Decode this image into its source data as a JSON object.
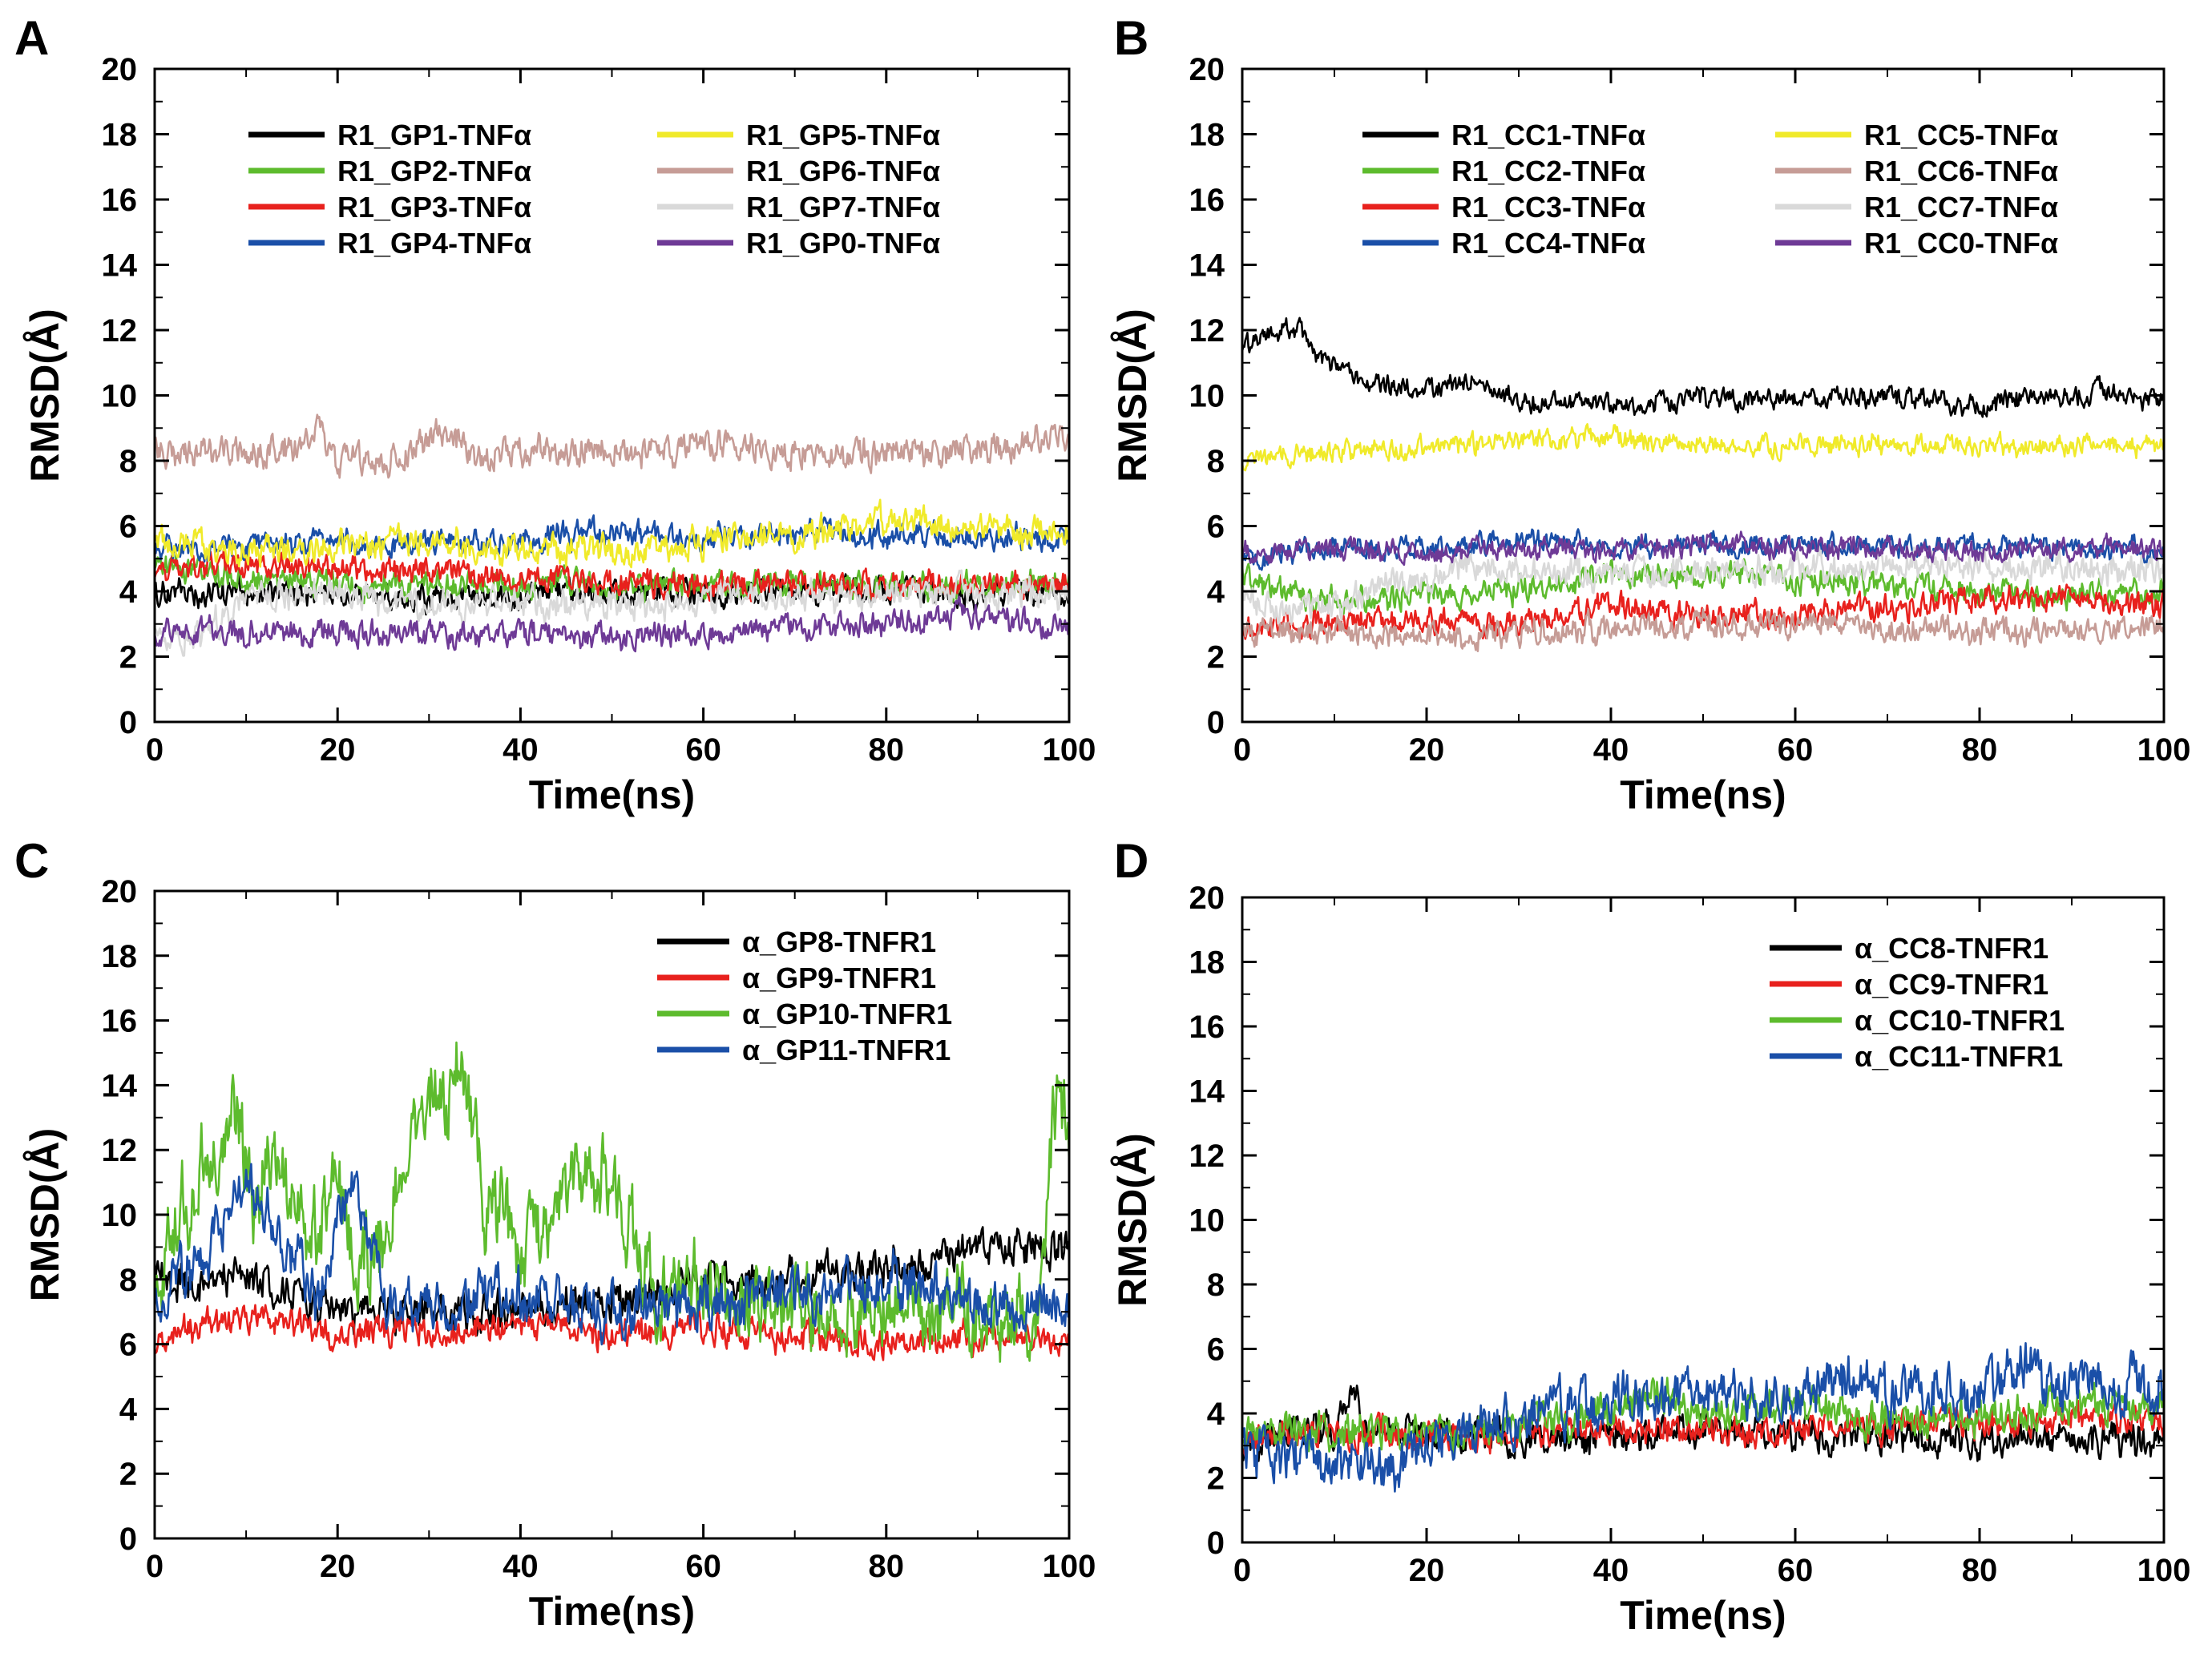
{
  "figure": {
    "background": "#ffffff"
  },
  "chart_data": [
    {
      "panel": "A",
      "type": "line",
      "title": "",
      "xlabel": "Time(ns)",
      "ylabel": "RMSD(Å)",
      "xlim": [
        0,
        100
      ],
      "ylim": [
        0,
        20
      ],
      "xticks": [
        0,
        20,
        40,
        60,
        80,
        100
      ],
      "yticks": [
        0,
        2,
        4,
        6,
        8,
        10,
        12,
        14,
        16,
        18,
        20
      ],
      "legend_columns": 2,
      "legend_position": "top-center",
      "series": [
        {
          "name": "R1_GP1-TNFα",
          "color": "#000000",
          "noise": 0.3,
          "x": [
            0,
            10,
            20,
            30,
            40,
            50,
            60,
            70,
            80,
            90,
            100
          ],
          "values": [
            3.8,
            4.0,
            3.9,
            3.8,
            3.9,
            4.0,
            4.0,
            4.0,
            4.0,
            3.9,
            4.0
          ]
        },
        {
          "name": "R1_GP2-TNFα",
          "color": "#5dbb2d",
          "noise": 0.3,
          "x": [
            0,
            10,
            20,
            30,
            40,
            50,
            60,
            70,
            80,
            90,
            100
          ],
          "values": [
            4.8,
            4.4,
            4.2,
            4.2,
            4.2,
            4.2,
            4.2,
            4.2,
            4.2,
            4.2,
            4.2
          ]
        },
        {
          "name": "R1_GP3-TNFα",
          "color": "#e8211d",
          "noise": 0.3,
          "x": [
            0,
            10,
            20,
            30,
            40,
            50,
            60,
            70,
            80,
            90,
            100
          ],
          "values": [
            4.5,
            4.9,
            4.7,
            4.6,
            4.4,
            4.3,
            4.2,
            4.2,
            4.2,
            4.2,
            4.2
          ]
        },
        {
          "name": "R1_GP4-TNFα",
          "color": "#1a4fa8",
          "noise": 0.3,
          "x": [
            0,
            10,
            20,
            30,
            40,
            50,
            60,
            70,
            80,
            90,
            100
          ],
          "values": [
            5.4,
            5.3,
            5.5,
            5.4,
            5.6,
            5.8,
            5.6,
            5.8,
            5.7,
            5.6,
            5.6
          ]
        },
        {
          "name": "R1_GP5-TNFα",
          "color": "#f0ea2a",
          "noise": 0.35,
          "x": [
            0,
            10,
            20,
            30,
            40,
            50,
            60,
            70,
            80,
            90,
            100
          ],
          "values": [
            5.5,
            5.3,
            5.4,
            5.6,
            5.3,
            5.2,
            5.5,
            5.7,
            6.2,
            5.9,
            5.8
          ]
        },
        {
          "name": "R1_GP6-TNFα",
          "color": "#c69c96",
          "noise": 0.35,
          "x": [
            0,
            5,
            10,
            15,
            18,
            20,
            25,
            30,
            32,
            35,
            40,
            50,
            60,
            70,
            80,
            90,
            100
          ],
          "values": [
            8.4,
            8.2,
            8.3,
            8.4,
            8.9,
            8.0,
            7.9,
            8.7,
            9.0,
            8.0,
            8.3,
            8.3,
            8.4,
            8.3,
            8.2,
            8.3,
            8.8
          ]
        },
        {
          "name": "R1_GP7-TNFα",
          "color": "#d9d9d9",
          "noise": 0.35,
          "x": [
            0,
            5,
            10,
            20,
            30,
            40,
            50,
            60,
            70,
            80,
            90,
            100
          ],
          "values": [
            2.8,
            2.7,
            3.8,
            4.0,
            3.5,
            3.7,
            3.6,
            3.7,
            3.8,
            3.9,
            4.0,
            3.9
          ]
        },
        {
          "name": "R1_GP0-TNFα",
          "color": "#6e3a96",
          "noise": 0.3,
          "x": [
            0,
            10,
            20,
            30,
            40,
            50,
            60,
            70,
            80,
            90,
            100
          ],
          "values": [
            2.7,
            2.8,
            2.7,
            2.7,
            2.7,
            2.6,
            2.7,
            2.8,
            3.1,
            3.3,
            2.8
          ]
        }
      ]
    },
    {
      "panel": "B",
      "type": "line",
      "title": "",
      "xlabel": "Time(ns)",
      "ylabel": "RMSD(Å)",
      "xlim": [
        0,
        100
      ],
      "ylim": [
        0,
        20
      ],
      "xticks": [
        0,
        20,
        40,
        60,
        80,
        100
      ],
      "yticks": [
        0,
        2,
        4,
        6,
        8,
        10,
        12,
        14,
        16,
        18,
        20
      ],
      "legend_columns": 2,
      "legend_position": "top-center",
      "series": [
        {
          "name": "R1_CC1-TNFα",
          "color": "#000000",
          "noise": 0.25,
          "x": [
            0,
            3,
            6,
            8,
            10,
            15,
            20,
            25,
            28,
            30,
            35,
            40,
            50,
            60,
            70,
            80,
            90,
            100
          ],
          "values": [
            11.5,
            11.8,
            12.1,
            11.2,
            10.8,
            10.3,
            10.2,
            10.4,
            10.0,
            9.8,
            9.8,
            9.7,
            9.9,
            9.9,
            10.0,
            9.7,
            10.1,
            9.9
          ]
        },
        {
          "name": "R1_CC2-TNFα",
          "color": "#5dbb2d",
          "noise": 0.3,
          "x": [
            0,
            5,
            10,
            20,
            30,
            40,
            50,
            60,
            70,
            80,
            90,
            100
          ],
          "values": [
            4.5,
            3.9,
            3.7,
            3.8,
            4.1,
            4.5,
            4.6,
            4.4,
            4.2,
            4.0,
            3.9,
            4.0
          ]
        },
        {
          "name": "R1_CC3-TNFα",
          "color": "#e8211d",
          "noise": 0.3,
          "x": [
            0,
            10,
            20,
            30,
            35,
            40,
            50,
            60,
            70,
            80,
            90,
            100
          ],
          "values": [
            2.8,
            3.0,
            3.1,
            2.9,
            3.3,
            3.6,
            3.2,
            3.3,
            3.5,
            3.7,
            3.8,
            3.5
          ]
        },
        {
          "name": "R1_CC4-TNFα",
          "color": "#1a4fa8",
          "noise": 0.25,
          "x": [
            0,
            10,
            20,
            30,
            40,
            50,
            60,
            70,
            80,
            90,
            100
          ],
          "values": [
            5.0,
            5.4,
            5.3,
            5.5,
            5.4,
            5.4,
            5.4,
            5.3,
            5.4,
            5.3,
            5.3
          ]
        },
        {
          "name": "R1_CC5-TNFα",
          "color": "#f0ea2a",
          "noise": 0.25,
          "x": [
            0,
            10,
            20,
            30,
            40,
            50,
            60,
            70,
            80,
            90,
            100
          ],
          "values": [
            8.0,
            8.3,
            8.4,
            8.6,
            8.7,
            8.5,
            8.4,
            8.5,
            8.4,
            8.5,
            8.5
          ]
        },
        {
          "name": "R1_CC6-TNFα",
          "color": "#c69c96",
          "noise": 0.3,
          "x": [
            0,
            10,
            20,
            30,
            40,
            50,
            60,
            70,
            80,
            90,
            100
          ],
          "values": [
            2.7,
            2.8,
            2.6,
            2.7,
            2.9,
            3.0,
            3.0,
            2.9,
            2.8,
            2.8,
            2.9
          ]
        },
        {
          "name": "R1_CC7-TNFα",
          "color": "#d9d9d9",
          "noise": 0.35,
          "x": [
            0,
            5,
            10,
            15,
            20,
            25,
            30,
            40,
            50,
            60,
            70,
            80,
            90,
            100
          ],
          "values": [
            3.8,
            3.3,
            3.7,
            4.0,
            4.4,
            4.8,
            4.6,
            4.5,
            4.6,
            4.7,
            4.8,
            4.8,
            4.7,
            4.6
          ]
        },
        {
          "name": "R1_CC0-TNFα",
          "color": "#6e3a96",
          "noise": 0.25,
          "x": [
            0,
            10,
            20,
            30,
            40,
            50,
            60,
            70,
            80,
            90,
            100
          ],
          "values": [
            5.2,
            5.3,
            5.2,
            5.3,
            5.3,
            5.4,
            5.3,
            5.3,
            5.2,
            5.3,
            5.3
          ]
        }
      ]
    },
    {
      "panel": "C",
      "type": "line",
      "title": "",
      "xlabel": "Time(ns)",
      "ylabel": "RMSD(Å)",
      "xlim": [
        0,
        100
      ],
      "ylim": [
        0,
        20
      ],
      "xticks": [
        0,
        20,
        40,
        60,
        80,
        100
      ],
      "yticks": [
        0,
        2,
        4,
        6,
        8,
        10,
        12,
        14,
        16,
        18,
        20
      ],
      "legend_columns": 1,
      "legend_position": "top-right",
      "series": [
        {
          "name": "α_GP8-TNFR1",
          "color": "#000000",
          "noise": 0.45,
          "x": [
            0,
            5,
            10,
            15,
            18,
            20,
            30,
            40,
            50,
            58,
            60,
            70,
            80,
            85,
            86,
            90,
            100
          ],
          "values": [
            8.0,
            7.8,
            8.2,
            7.6,
            7.0,
            7.0,
            7.0,
            7.0,
            7.3,
            7.9,
            8.0,
            8.0,
            8.4,
            8.5,
            9.0,
            9.0,
            9.0
          ]
        },
        {
          "name": "α_GP9-TNFR1",
          "color": "#e8211d",
          "noise": 0.35,
          "x": [
            0,
            5,
            10,
            15,
            20,
            30,
            40,
            50,
            60,
            70,
            80,
            90,
            100
          ],
          "values": [
            6.0,
            6.5,
            6.8,
            6.6,
            6.2,
            6.5,
            6.6,
            6.3,
            6.5,
            6.2,
            6.1,
            6.1,
            6.1
          ]
        },
        {
          "name": "α_GP10-TNFR1",
          "color": "#5dbb2d",
          "noise": 1.0,
          "x": [
            0,
            3,
            6,
            9,
            11,
            13,
            15,
            17,
            20,
            22,
            25,
            28,
            30,
            32,
            34,
            36,
            40,
            43,
            46,
            49,
            52,
            55,
            60,
            70,
            80,
            90,
            97,
            98,
            99,
            100
          ],
          "values": [
            8.0,
            10.0,
            12.0,
            13.5,
            10.0,
            12.0,
            11.0,
            9.0,
            11.0,
            8.5,
            9.0,
            12.0,
            14.0,
            13.5,
            14.5,
            11.0,
            9.0,
            10.0,
            11.0,
            11.5,
            10.0,
            7.8,
            7.5,
            7.2,
            7.0,
            7.0,
            7.0,
            12.0,
            14.0,
            12.0
          ]
        },
        {
          "name": "α_GP11-TNFR1",
          "color": "#1a4fa8",
          "noise": 0.6,
          "x": [
            0,
            5,
            8,
            10,
            13,
            16,
            18,
            20,
            22,
            24,
            25,
            30,
            40,
            50,
            60,
            70,
            80,
            90,
            100
          ],
          "values": [
            7.5,
            8.5,
            10.0,
            11.0,
            9.5,
            8.5,
            7.0,
            9.5,
            11.0,
            8.5,
            7.0,
            7.2,
            7.6,
            7.0,
            7.2,
            7.5,
            8.0,
            7.2,
            7.2
          ]
        }
      ]
    },
    {
      "panel": "D",
      "type": "line",
      "title": "",
      "xlabel": "Time(ns)",
      "ylabel": "RMSD(Å)",
      "xlim": [
        0,
        100
      ],
      "ylim": [
        0,
        20
      ],
      "xticks": [
        0,
        20,
        40,
        60,
        80,
        100
      ],
      "yticks": [
        0,
        2,
        4,
        6,
        8,
        10,
        12,
        14,
        16,
        18,
        20
      ],
      "legend_columns": 1,
      "legend_position": "top-right",
      "series": [
        {
          "name": "α_CC8-TNFR1",
          "color": "#000000",
          "noise": 0.4,
          "x": [
            0,
            5,
            10,
            12,
            13,
            15,
            20,
            30,
            40,
            50,
            60,
            70,
            80,
            90,
            100
          ],
          "values": [
            3.0,
            3.5,
            3.6,
            5.0,
            3.8,
            3.5,
            3.4,
            3.2,
            3.3,
            3.5,
            3.4,
            3.2,
            3.2,
            3.1,
            3.3
          ]
        },
        {
          "name": "α_CC9-TNFR1",
          "color": "#e8211d",
          "noise": 0.35,
          "x": [
            0,
            10,
            20,
            30,
            40,
            50,
            60,
            70,
            80,
            90,
            100
          ],
          "values": [
            3.3,
            3.4,
            3.3,
            3.3,
            3.6,
            3.4,
            3.5,
            3.6,
            3.7,
            3.8,
            3.8
          ]
        },
        {
          "name": "α_CC10-TNFR1",
          "color": "#5dbb2d",
          "noise": 0.45,
          "x": [
            0,
            10,
            20,
            30,
            40,
            45,
            50,
            60,
            70,
            80,
            90,
            100
          ],
          "values": [
            3.2,
            3.5,
            3.3,
            3.6,
            4.0,
            4.6,
            4.0,
            4.2,
            3.8,
            4.0,
            4.2,
            4.2
          ]
        },
        {
          "name": "α_CC11-TNFR1",
          "color": "#1a4fa8",
          "noise": 0.6,
          "x": [
            0,
            5,
            10,
            15,
            18,
            20,
            25,
            30,
            40,
            50,
            60,
            65,
            70,
            80,
            85,
            90,
            100
          ],
          "values": [
            2.8,
            2.6,
            2.4,
            2.3,
            2.5,
            3.0,
            3.5,
            4.0,
            4.4,
            4.6,
            4.4,
            5.2,
            4.6,
            4.7,
            5.5,
            4.7,
            4.8
          ]
        }
      ]
    }
  ]
}
